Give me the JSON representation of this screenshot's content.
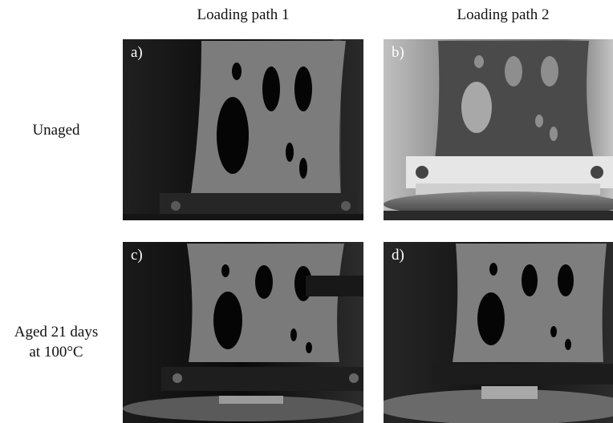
{
  "column_headers": [
    "Loading path 1",
    "Loading path 2"
  ],
  "row_labels": {
    "unaged": "Unaged",
    "aged_line1": "Aged 21 days",
    "aged_line2": "at 100°C"
  },
  "panels": [
    {
      "label": "a)",
      "condition": "Unaged",
      "loading_path": "Loading path 1"
    },
    {
      "label": "b)",
      "condition": "Unaged",
      "loading_path": "Loading path 2"
    },
    {
      "label": "c)",
      "condition": "Aged",
      "loading_path": "Loading path 1"
    },
    {
      "label": "d)",
      "condition": "Aged",
      "loading_path": "Loading path 2"
    }
  ]
}
